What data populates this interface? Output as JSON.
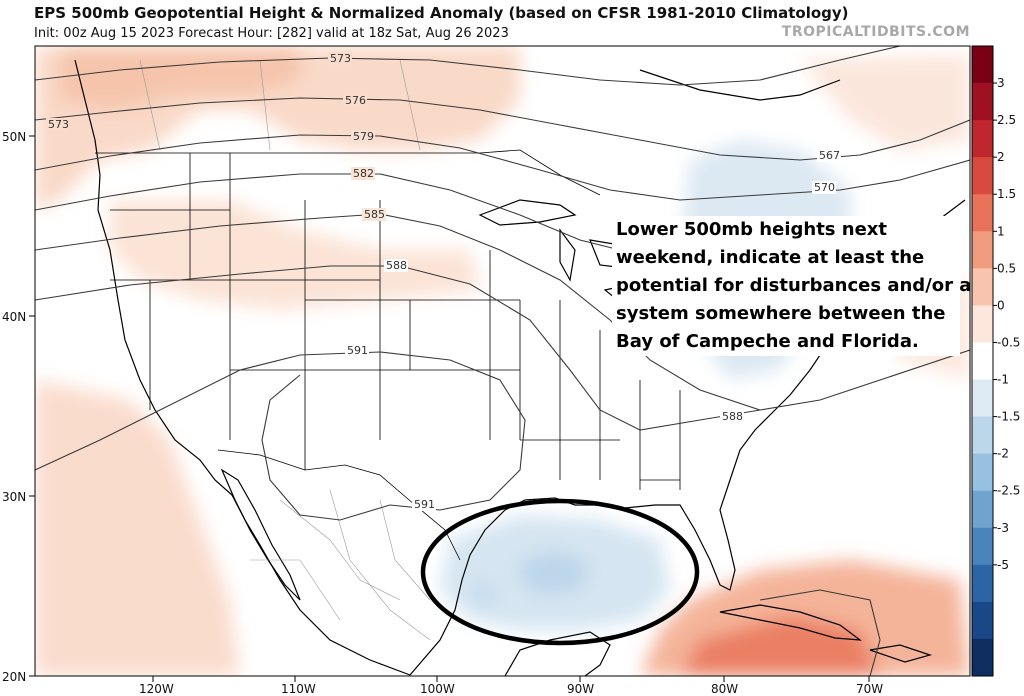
{
  "header": {
    "title": "EPS 500mb Geopotential Height & Normalized Anomaly (based on CFSR 1981-2010 Climatology)",
    "subtitle": "Init: 00z Aug 15 2023   Forecast Hour: [282]   valid at 18z Sat, Aug 26 2023",
    "brand": "TROPICALTIDBITS.COM"
  },
  "axes": {
    "lon_labels": [
      "120W",
      "110W",
      "100W",
      "90W",
      "80W",
      "70W"
    ],
    "lat_labels": [
      "50N",
      "40N",
      "30N",
      "20N"
    ]
  },
  "contours": {
    "labels": [
      "573",
      "576",
      "579",
      "582",
      "585",
      "588",
      "591",
      "567",
      "570",
      "588",
      "591",
      "573"
    ]
  },
  "colorbar": {
    "ticks": [
      "3",
      "2.5",
      "2",
      "1.5",
      "1",
      "0.5",
      "0",
      "-0.5",
      "-1",
      "-1.5",
      "-2",
      "-2.5",
      "-3",
      "-5"
    ],
    "colors": [
      "#7a0014",
      "#9e1022",
      "#c0262d",
      "#d84a3e",
      "#e8735a",
      "#f09b7e",
      "#f8c4ad",
      "#fde6db",
      "#ffffff",
      "#dde9f3",
      "#bcd6ea",
      "#98c0e0",
      "#6fa4d0",
      "#4a84bd",
      "#2c64a6",
      "#1a4787",
      "#0e2d60"
    ]
  },
  "annotation": {
    "lines": [
      "Lower 500mb heights next",
      "weekend, indicate at least the",
      "potential for disturbances and/or a",
      "system somewhere between the",
      "Bay of Campeche and Florida."
    ]
  },
  "legend_colors": {
    "text": "#000000",
    "contour": "#333333",
    "border": "#000000",
    "circle": "#000000"
  }
}
